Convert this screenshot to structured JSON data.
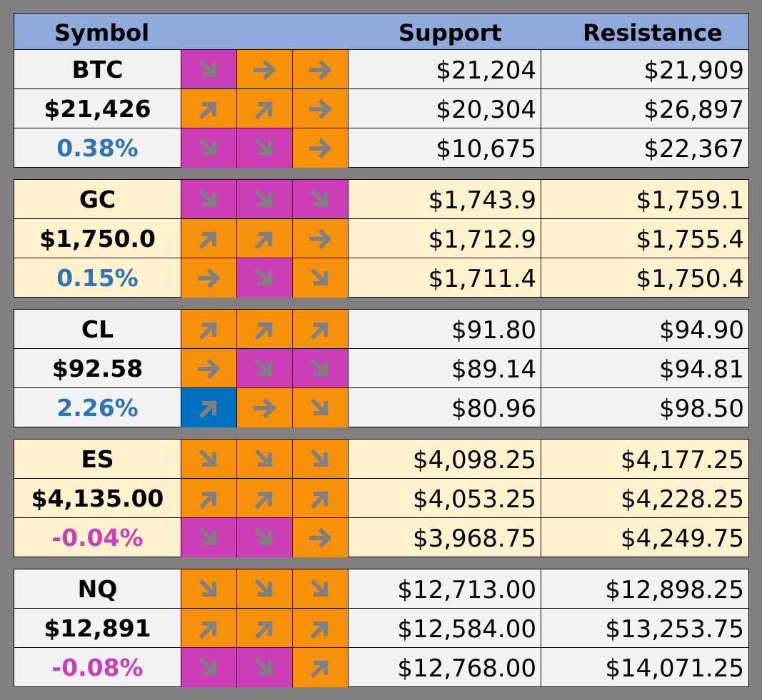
{
  "header": {
    "symbol": "Symbol",
    "support": "Support",
    "resistance": "Resistance"
  },
  "colors": {
    "header": "#8eaadb",
    "magenta": "#cc3eb8",
    "orange": "#f7900a",
    "blue": "#0070c0",
    "positive": "#2e75b6",
    "negative": "#cc3eb8",
    "light_gray": "#f2f2f2",
    "light_yellow": "#fff2cc",
    "arrow": "#808080"
  },
  "groups": [
    {
      "symbol": "BTC",
      "price": "$21,426",
      "change": "0.38%",
      "change_sign": "pos",
      "bg": "#f2f2f2",
      "rows": [
        {
          "arrows": [
            {
              "dir": "down",
              "color": "mag"
            },
            {
              "dir": "right",
              "color": "ora"
            },
            {
              "dir": "right",
              "color": "ora"
            }
          ],
          "support": "$21,204",
          "resistance": "$21,909"
        },
        {
          "arrows": [
            {
              "dir": "up",
              "color": "ora"
            },
            {
              "dir": "up",
              "color": "ora"
            },
            {
              "dir": "right",
              "color": "ora"
            }
          ],
          "support": "$20,304",
          "resistance": "$26,897"
        },
        {
          "arrows": [
            {
              "dir": "down",
              "color": "mag"
            },
            {
              "dir": "down",
              "color": "mag"
            },
            {
              "dir": "right",
              "color": "ora"
            }
          ],
          "support": "$10,675",
          "resistance": "$22,367"
        }
      ]
    },
    {
      "symbol": "GC",
      "price": "$1,750.0",
      "change": "0.15%",
      "change_sign": "pos",
      "bg": "#fff2cc",
      "rows": [
        {
          "arrows": [
            {
              "dir": "down",
              "color": "mag"
            },
            {
              "dir": "down",
              "color": "mag"
            },
            {
              "dir": "down",
              "color": "mag"
            }
          ],
          "support": "$1,743.9",
          "resistance": "$1,759.1"
        },
        {
          "arrows": [
            {
              "dir": "up",
              "color": "ora"
            },
            {
              "dir": "up",
              "color": "ora"
            },
            {
              "dir": "right",
              "color": "ora"
            }
          ],
          "support": "$1,712.9",
          "resistance": "$1,755.4"
        },
        {
          "arrows": [
            {
              "dir": "right",
              "color": "ora"
            },
            {
              "dir": "down",
              "color": "mag"
            },
            {
              "dir": "down",
              "color": "ora"
            }
          ],
          "support": "$1,711.4",
          "resistance": "$1,750.4"
        }
      ]
    },
    {
      "symbol": "CL",
      "price": "$92.58",
      "change": "2.26%",
      "change_sign": "pos",
      "bg": "#f2f2f2",
      "rows": [
        {
          "arrows": [
            {
              "dir": "up",
              "color": "ora"
            },
            {
              "dir": "up",
              "color": "ora"
            },
            {
              "dir": "up",
              "color": "ora"
            }
          ],
          "support": "$91.80",
          "resistance": "$94.90"
        },
        {
          "arrows": [
            {
              "dir": "right",
              "color": "ora"
            },
            {
              "dir": "down",
              "color": "mag"
            },
            {
              "dir": "down",
              "color": "mag"
            }
          ],
          "support": "$89.14",
          "resistance": "$94.81"
        },
        {
          "arrows": [
            {
              "dir": "up",
              "color": "blu"
            },
            {
              "dir": "right",
              "color": "ora"
            },
            {
              "dir": "down",
              "color": "ora"
            }
          ],
          "support": "$80.96",
          "resistance": "$98.50"
        }
      ]
    },
    {
      "symbol": "ES",
      "price": "$4,135.00",
      "change": "-0.04%",
      "change_sign": "neg",
      "bg": "#fff2cc",
      "rows": [
        {
          "arrows": [
            {
              "dir": "down",
              "color": "ora"
            },
            {
              "dir": "down",
              "color": "ora"
            },
            {
              "dir": "down",
              "color": "ora"
            }
          ],
          "support": "$4,098.25",
          "resistance": "$4,177.25"
        },
        {
          "arrows": [
            {
              "dir": "up",
              "color": "ora"
            },
            {
              "dir": "up",
              "color": "ora"
            },
            {
              "dir": "up",
              "color": "ora"
            }
          ],
          "support": "$4,053.25",
          "resistance": "$4,228.25"
        },
        {
          "arrows": [
            {
              "dir": "down",
              "color": "mag"
            },
            {
              "dir": "down",
              "color": "mag"
            },
            {
              "dir": "right",
              "color": "ora"
            }
          ],
          "support": "$3,968.75",
          "resistance": "$4,249.75"
        }
      ]
    },
    {
      "symbol": "NQ",
      "price": "$12,891",
      "change": "-0.08%",
      "change_sign": "neg",
      "bg": "#f2f2f2",
      "rows": [
        {
          "arrows": [
            {
              "dir": "down",
              "color": "ora"
            },
            {
              "dir": "down",
              "color": "ora"
            },
            {
              "dir": "down",
              "color": "ora"
            }
          ],
          "support": "$12,713.00",
          "resistance": "$12,898.25"
        },
        {
          "arrows": [
            {
              "dir": "up",
              "color": "ora"
            },
            {
              "dir": "up",
              "color": "ora"
            },
            {
              "dir": "up",
              "color": "ora"
            }
          ],
          "support": "$12,584.00",
          "resistance": "$13,253.75"
        },
        {
          "arrows": [
            {
              "dir": "down",
              "color": "mag"
            },
            {
              "dir": "down",
              "color": "mag"
            },
            {
              "dir": "up",
              "color": "ora"
            }
          ],
          "support": "$12,768.00",
          "resistance": "$14,071.25"
        }
      ]
    }
  ]
}
